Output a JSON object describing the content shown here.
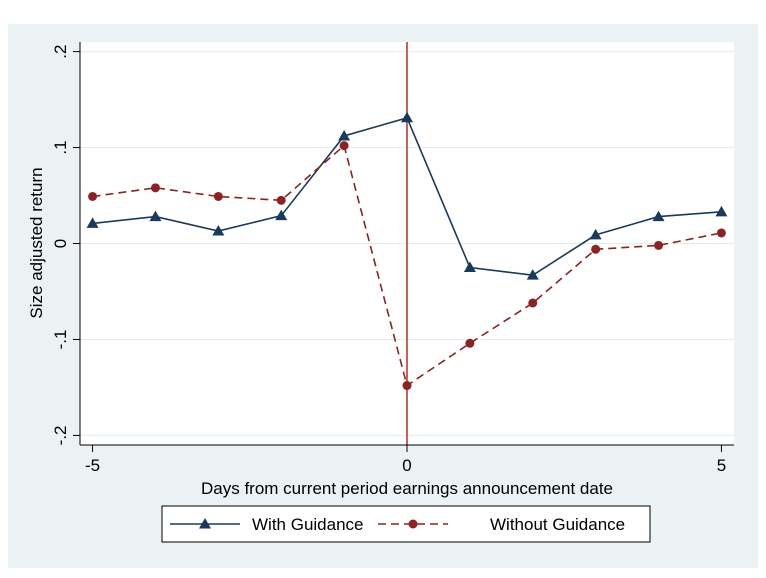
{
  "chart_data": {
    "type": "line",
    "title": "",
    "xlabel": "Days from current period earnings announcement date",
    "ylabel": "Size adjusted return",
    "x": [
      -5,
      -4,
      -3,
      -2,
      -1,
      0,
      1,
      2,
      3,
      4,
      5
    ],
    "xlim": [
      -5.2,
      5.2
    ],
    "ylim": [
      -0.21,
      0.21
    ],
    "x_ticks": [
      -5,
      0,
      5
    ],
    "x_tick_labels": [
      "-5",
      "0",
      "5"
    ],
    "y_ticks": [
      -0.2,
      -0.1,
      0,
      0.1,
      0.2
    ],
    "y_tick_labels": [
      "-.2",
      "-.1",
      "0",
      ".1",
      ".2"
    ],
    "grid": "horizontal",
    "reference_line": {
      "x": 0,
      "color": "#c0392b"
    },
    "legend_position": "bottom",
    "series": [
      {
        "name": "With Guidance",
        "color": "#1a3a5c",
        "line_style": "solid",
        "marker": "triangle",
        "values": [
          0.021,
          0.028,
          0.013,
          0.029,
          0.112,
          0.131,
          -0.025,
          -0.033,
          0.009,
          0.028,
          0.033
        ]
      },
      {
        "name": "Without Guidance",
        "color": "#8b2323",
        "line_style": "dashed",
        "marker": "circle",
        "values": [
          0.049,
          0.058,
          0.049,
          0.045,
          0.102,
          -0.148,
          -0.104,
          -0.062,
          -0.006,
          -0.002,
          0.011
        ]
      }
    ]
  }
}
